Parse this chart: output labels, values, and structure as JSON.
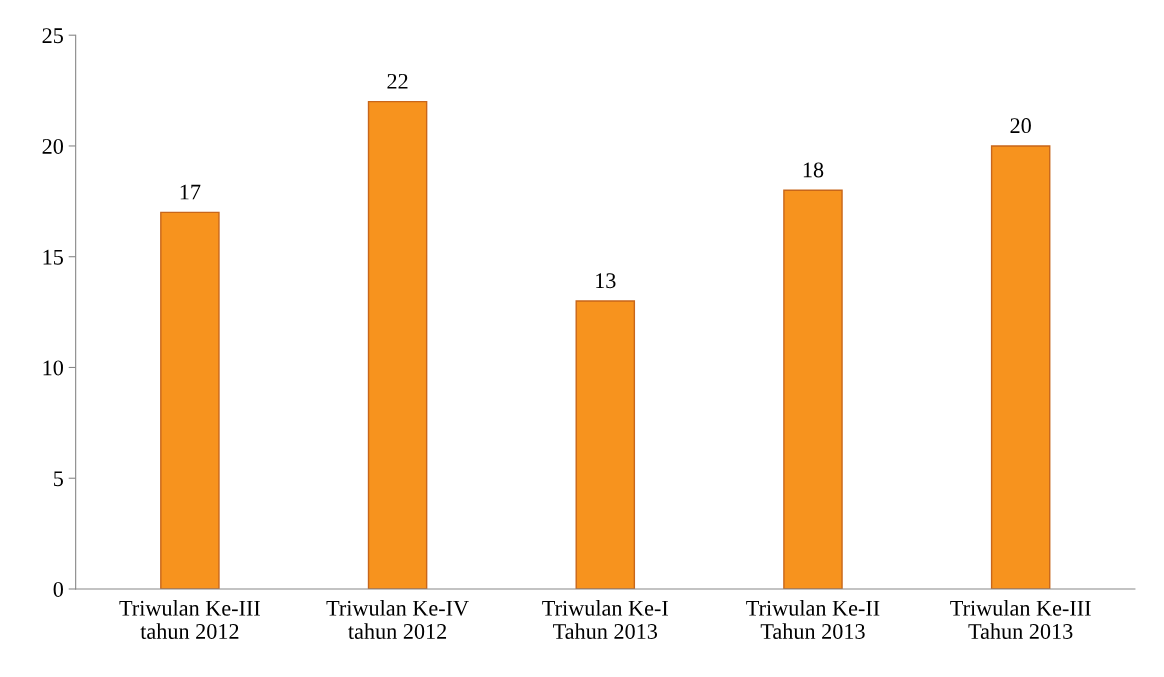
{
  "chart_data": {
    "type": "bar",
    "categories": [
      "Triwulan Ke-III\ntahun 2012",
      "Triwulan Ke-IV\ntahun 2012",
      "Triwulan Ke-I\nTahun 2013",
      "Triwulan Ke-II\nTahun 2013",
      "Triwulan Ke-III\nTahun 2013"
    ],
    "values": [
      17,
      22,
      13,
      18,
      20
    ],
    "color": "#f7931e",
    "ylim": [
      0,
      25
    ],
    "yticks": [
      0,
      5,
      10,
      15,
      20,
      25
    ],
    "data_labels": true,
    "grid": false,
    "legend": false
  }
}
